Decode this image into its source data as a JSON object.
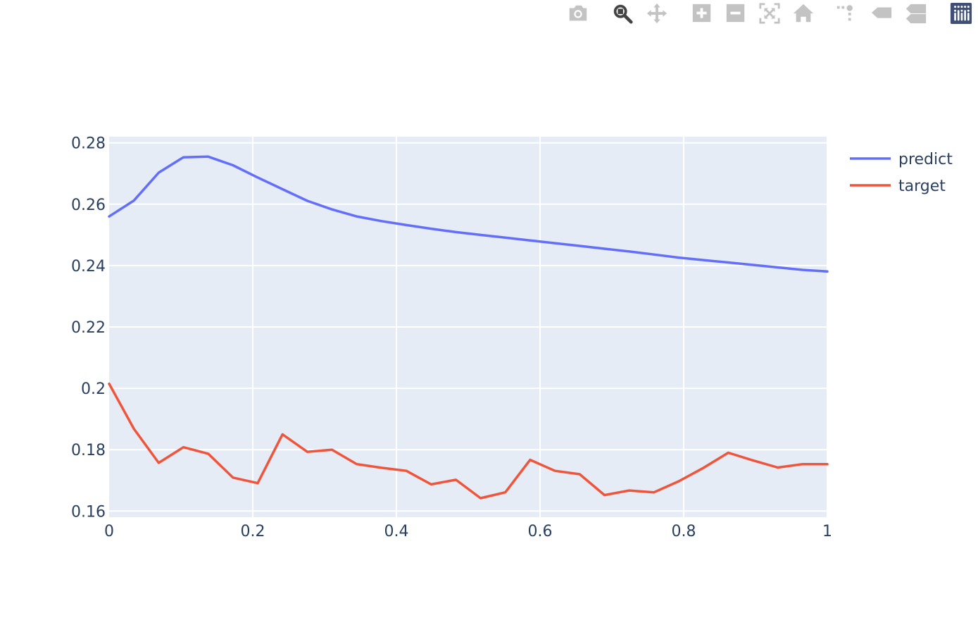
{
  "modebar": {
    "buttons": [
      {
        "name": "download-plot-button",
        "icon": "camera-icon"
      },
      {
        "name": "zoom-button",
        "icon": "magnifier-icon",
        "active": true
      },
      {
        "name": "pan-button",
        "icon": "move-arrows-icon"
      },
      {
        "name": "zoom-in-button",
        "icon": "plus-square-icon"
      },
      {
        "name": "zoom-out-button",
        "icon": "minus-square-icon"
      },
      {
        "name": "autoscale-button",
        "icon": "autoscale-icon"
      },
      {
        "name": "reset-axes-button",
        "icon": "home-icon"
      },
      {
        "name": "spike-lines-button",
        "icon": "spike-lines-icon"
      },
      {
        "name": "hover-closest-button",
        "icon": "tag-closest-icon"
      },
      {
        "name": "hover-compare-button",
        "icon": "tag-compare-icon"
      },
      {
        "name": "plotly-logo-link",
        "icon": "plotly-logo-icon"
      }
    ],
    "active_color": "#444444",
    "inactive_color": "#c3c3c3",
    "logo_color": "#3f4f75"
  },
  "chart_data": {
    "type": "line",
    "title": "",
    "xlabel": "",
    "ylabel": "",
    "xlim": [
      0,
      1
    ],
    "ylim": [
      0.158,
      0.282
    ],
    "x_ticks": [
      0,
      0.2,
      0.4,
      0.6,
      0.8,
      1
    ],
    "x_tick_labels": [
      "0",
      "0.2",
      "0.4",
      "0.6",
      "0.8",
      "1"
    ],
    "y_ticks": [
      0.16,
      0.18,
      0.2,
      0.22,
      0.24,
      0.26,
      0.28
    ],
    "y_tick_labels": [
      "0.16",
      "0.18",
      "0.2",
      "0.22",
      "0.24",
      "0.26",
      "0.28"
    ],
    "grid": true,
    "plot_bgcolor": "#e5ecf6",
    "legend_position": "top-right",
    "x": [
      0,
      0.0345,
      0.069,
      0.1034,
      0.1379,
      0.1724,
      0.2069,
      0.2414,
      0.2759,
      0.3103,
      0.3448,
      0.3793,
      0.4138,
      0.4483,
      0.4828,
      0.5172,
      0.5517,
      0.5862,
      0.6207,
      0.6552,
      0.6897,
      0.7241,
      0.7586,
      0.7931,
      0.8276,
      0.8621,
      0.8966,
      0.931,
      0.9655,
      1
    ],
    "series": [
      {
        "name": "predict",
        "color": "#636efa",
        "values": [
          0.256,
          0.2612,
          0.2703,
          0.2753,
          0.2755,
          0.2727,
          0.2687,
          0.2649,
          0.2611,
          0.2583,
          0.256,
          0.2545,
          0.2532,
          0.252,
          0.2509,
          0.25,
          0.2491,
          0.2482,
          0.2473,
          0.2464,
          0.2455,
          0.2446,
          0.2436,
          0.2426,
          0.2418,
          0.241,
          0.2402,
          0.2394,
          0.2386,
          0.2381
        ]
      },
      {
        "name": "target",
        "color": "#ef553b",
        "values": [
          0.2015,
          0.1868,
          0.1757,
          0.1808,
          0.1787,
          0.1709,
          0.1691,
          0.185,
          0.1793,
          0.18,
          0.1753,
          0.1741,
          0.1731,
          0.1687,
          0.1702,
          0.1642,
          0.1661,
          0.1767,
          0.1731,
          0.172,
          0.1652,
          0.1667,
          0.1661,
          0.1697,
          0.1741,
          0.179,
          0.1765,
          0.1742,
          0.1753,
          0.1753
        ]
      }
    ]
  }
}
